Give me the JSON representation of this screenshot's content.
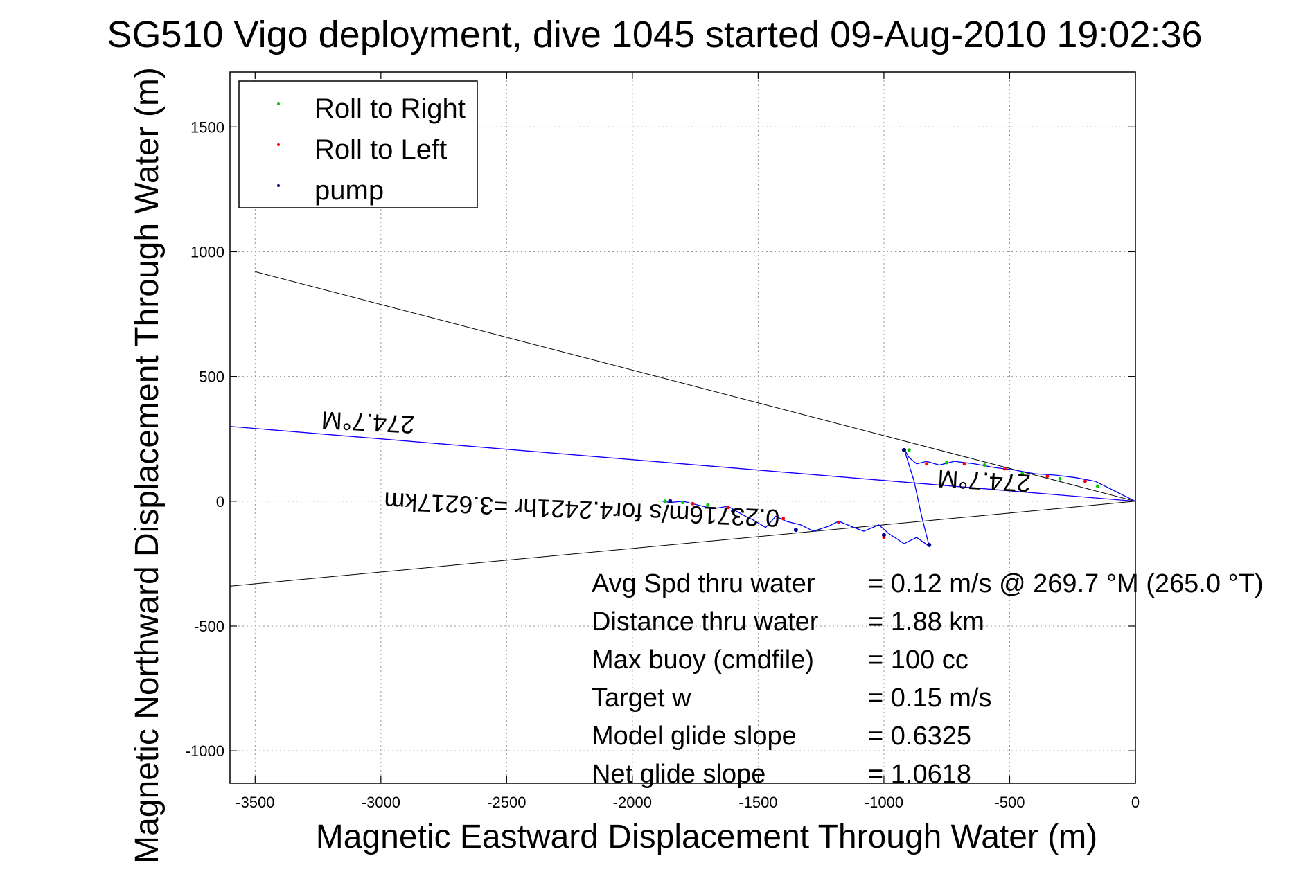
{
  "chart_data": {
    "type": "line",
    "title": "SG510 Vigo deployment, dive 1045 started 09-Aug-2010 19:02:36",
    "xlabel": "Magnetic Eastward Displacement Through Water (m)",
    "ylabel": "Magnetic Northward Displacement Through Water (m)",
    "xlim": [
      -3600,
      0
    ],
    "ylim": [
      -1130,
      1720
    ],
    "xticks": [
      -3500,
      -3000,
      -2500,
      -2000,
      -1500,
      -1000,
      -500,
      0
    ],
    "yticks": [
      -1000,
      -500,
      0,
      500,
      1000,
      1500
    ],
    "grid": true,
    "legend_position": "top-left",
    "legend": [
      {
        "label": "Roll to Right",
        "color": "#00cc00"
      },
      {
        "label": "Roll to Left",
        "color": "#ff0000"
      },
      {
        "label": "pump",
        "color": "#000080"
      }
    ],
    "series": [
      {
        "color": "#0000ff",
        "x": [
          0,
          -80,
          -160,
          -240,
          -320,
          -400,
          -480,
          -560,
          -640,
          -720,
          -780,
          -830,
          -870,
          -900,
          -920,
          -880,
          -850,
          -820,
          -870,
          -920,
          -980,
          -1020,
          -1080,
          -1120,
          -1180,
          -1220,
          -1280,
          -1330,
          -1390,
          -1430,
          -1470,
          -1520,
          -1560,
          -1620,
          -1680,
          -1740,
          -1800,
          -1850,
          -1880
        ],
        "y": [
          0,
          40,
          80,
          95,
          105,
          110,
          125,
          135,
          150,
          160,
          145,
          160,
          150,
          175,
          210,
          80,
          -60,
          -180,
          -145,
          -170,
          -130,
          -95,
          -120,
          -105,
          -80,
          -100,
          -120,
          -95,
          -80,
          -60,
          -105,
          -75,
          -55,
          -20,
          -30,
          -15,
          0,
          -5,
          0
        ]
      }
    ],
    "markers": {
      "roll_right": {
        "x": [
          -150,
          -300,
          -450,
          -600,
          -750,
          -900,
          -1700,
          -1800,
          -1870
        ],
        "y": [
          60,
          90,
          110,
          145,
          155,
          205,
          -15,
          -5,
          0
        ]
      },
      "roll_left": {
        "x": [
          -200,
          -350,
          -520,
          -680,
          -830,
          -1000,
          -1180,
          -1400,
          -1620,
          -1760
        ],
        "y": [
          80,
          100,
          130,
          150,
          150,
          -145,
          -85,
          -70,
          -25,
          -10
        ]
      },
      "pump": {
        "x": [
          -920,
          -820,
          -1000,
          -1350,
          -1600,
          -1850
        ],
        "y": [
          205,
          -175,
          -135,
          -115,
          -40,
          0
        ]
      }
    },
    "reference_lines": [
      {
        "color": "#000000",
        "x": [
          0,
          -3500
        ],
        "y": [
          0,
          920
        ]
      },
      {
        "color": "#000000",
        "x": [
          0,
          -3600
        ],
        "y": [
          0,
          -340
        ]
      },
      {
        "color": "#ff00ff",
        "x": [
          0,
          -3600
        ],
        "y": [
          0,
          300
        ]
      },
      {
        "color": "#0000ff",
        "x": [
          0,
          -3600
        ],
        "y": [
          0,
          300
        ]
      }
    ],
    "annotations": [
      {
        "text": "274.7°M",
        "x": -3050,
        "y": 350
      },
      {
        "text": "274.7°M",
        "x": -600,
        "y": 115
      },
      {
        "text": "0.23716m/s for4.2421hr =3.6217km",
        "x": -2200,
        "y": 0
      }
    ],
    "stats": [
      {
        "label": "Avg Spd thru water",
        "value": "=  0.12 m/s @ 269.7 °M (265.0 °T)"
      },
      {
        "label": "Distance thru water",
        "value": "=  1.88 km"
      },
      {
        "label": "Max buoy (cmdfile)",
        "value": "= 100 cc"
      },
      {
        "label": "Target w",
        "value": "= 0.15 m/s"
      },
      {
        "label": "Model glide slope",
        "value": "= 0.6325"
      },
      {
        "label": "Net glide slope",
        "value": "= 1.0618"
      }
    ]
  }
}
